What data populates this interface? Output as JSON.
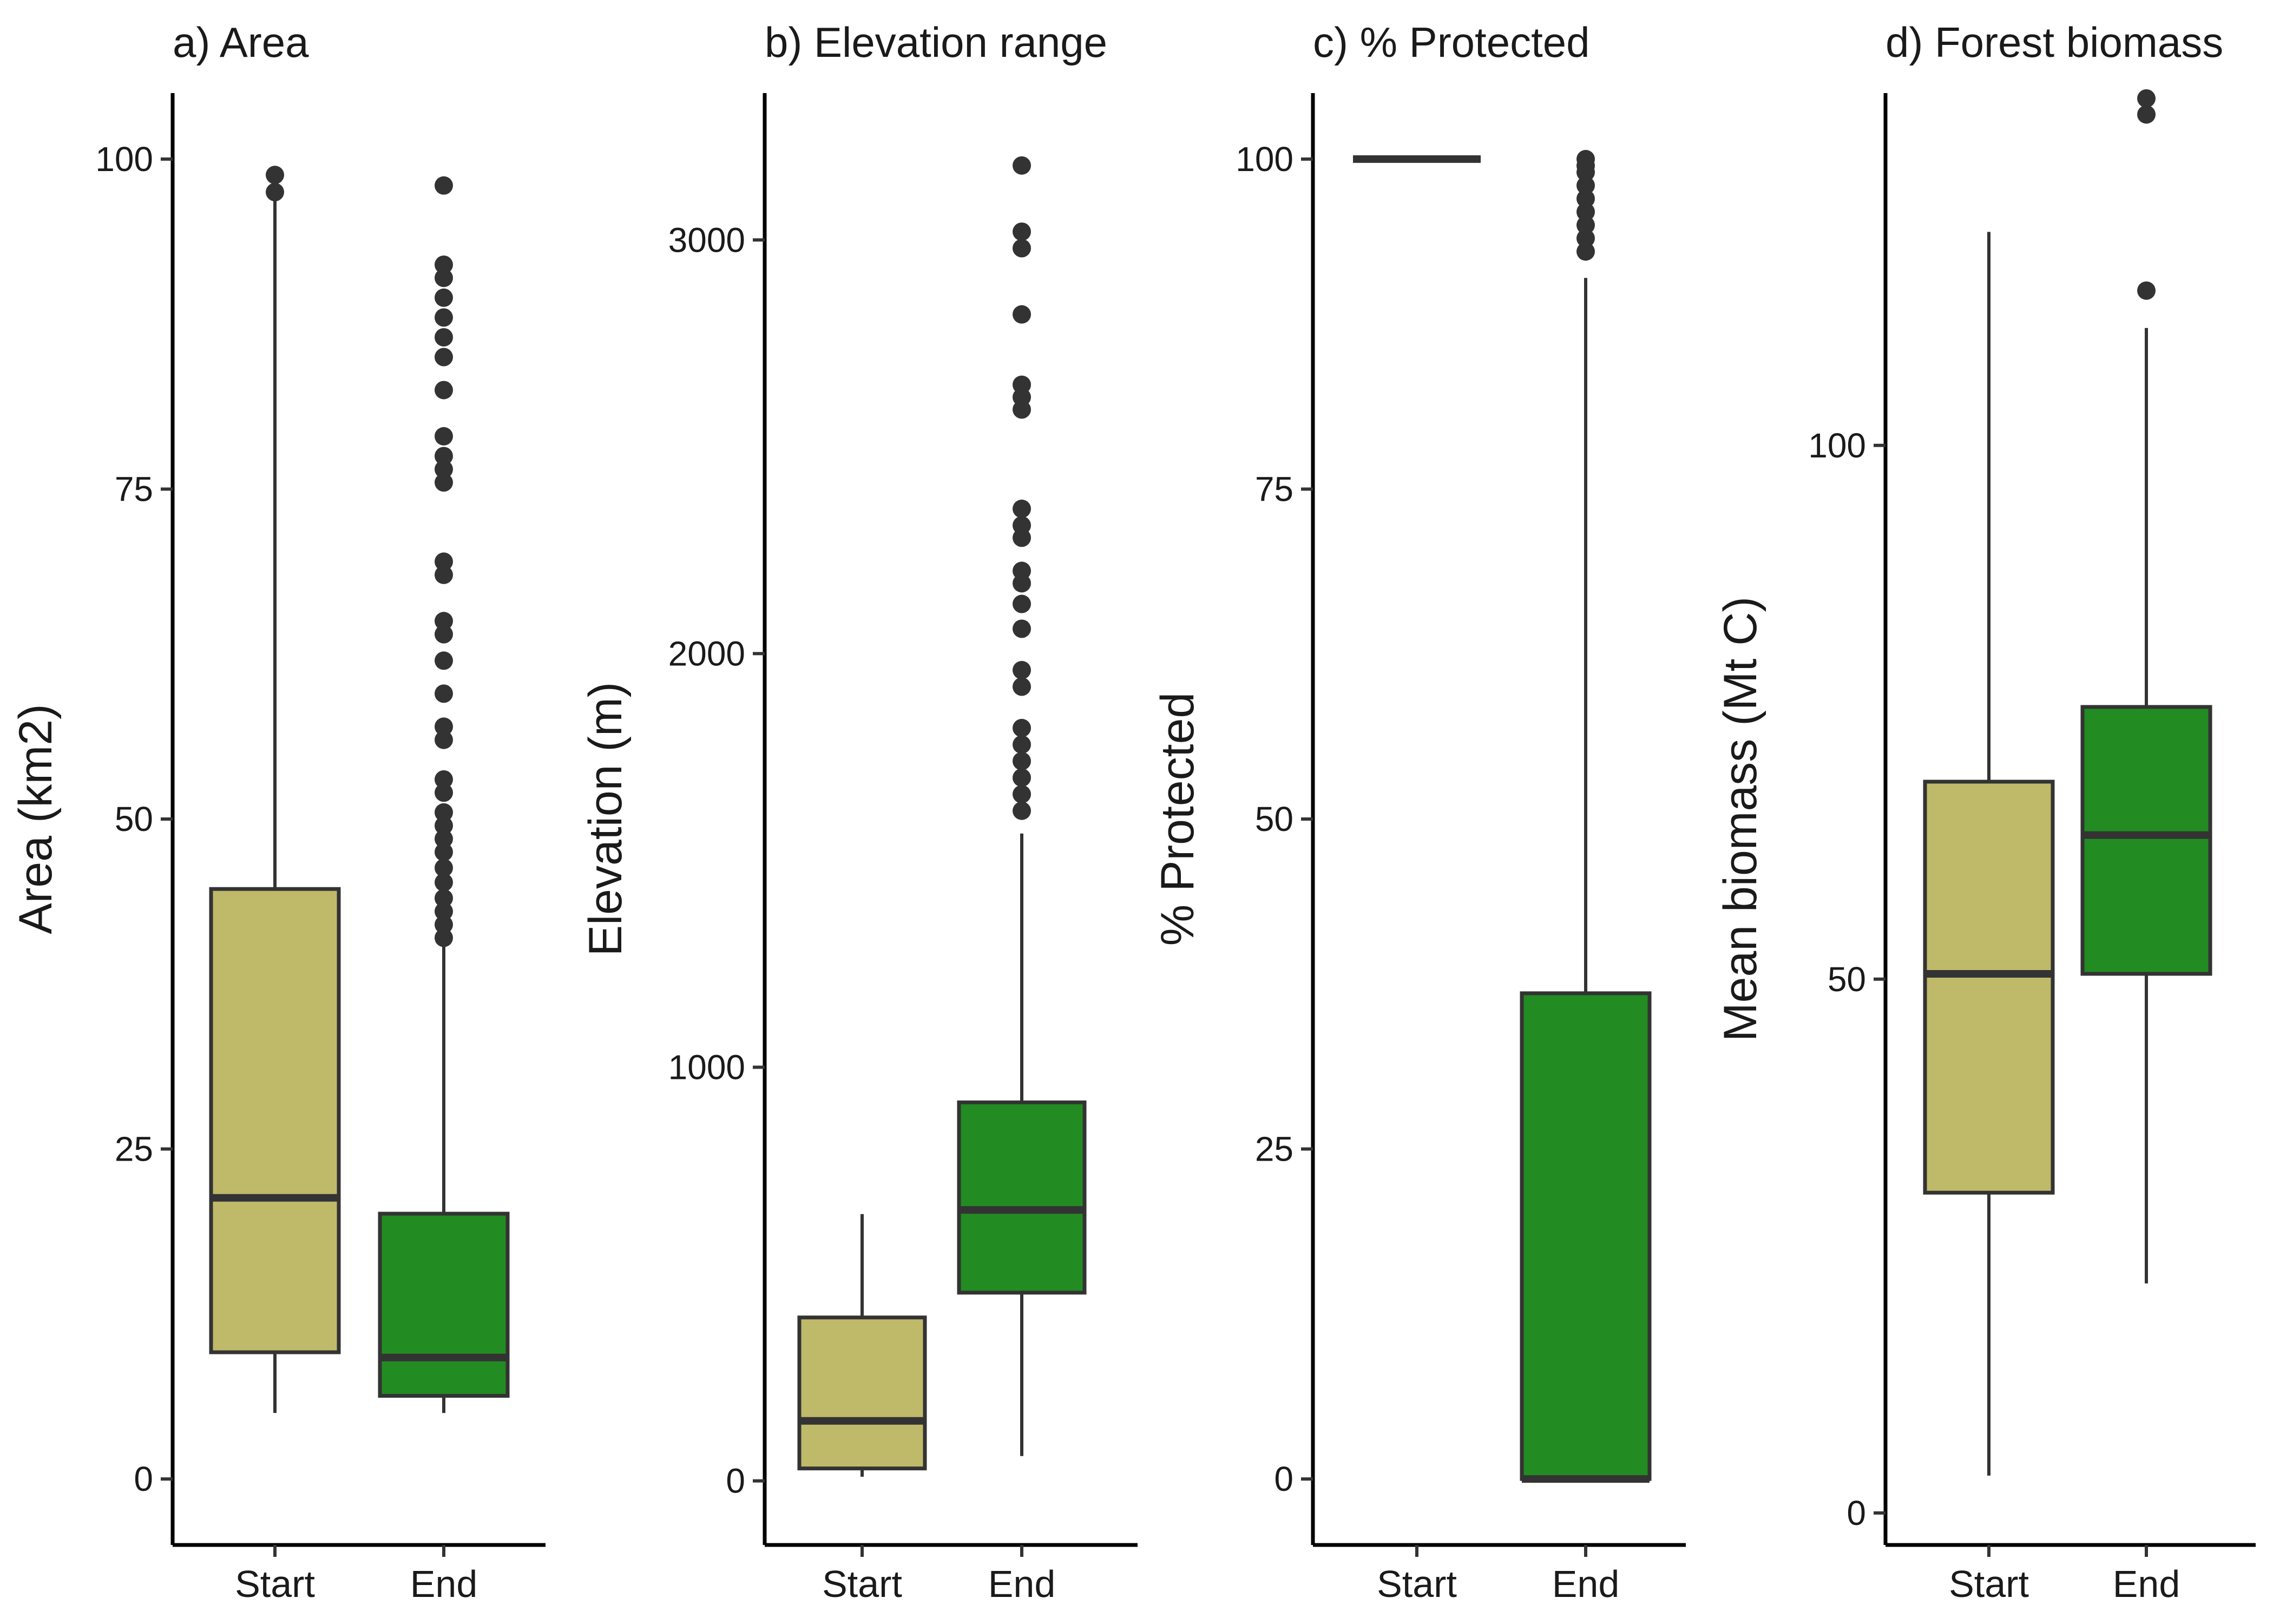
{
  "colors": {
    "start": "#bfb96a",
    "end": "#228b22",
    "line": "#333333"
  },
  "chart_data": [
    {
      "type": "box",
      "title": "a) Area",
      "xlabel": "",
      "ylabel": "Area (km2)",
      "ylim": [
        -5,
        105
      ],
      "y_ticks": [
        0,
        25,
        50,
        75,
        100
      ],
      "categories": [
        "Start",
        "End"
      ],
      "boxes": [
        {
          "category": "Start",
          "min": 5,
          "q1": 9.6,
          "median": 21.3,
          "q3": 44.7,
          "max": 97,
          "outliers": [
            97.5,
            98.8
          ]
        },
        {
          "category": "End",
          "min": 5,
          "q1": 6.3,
          "median": 9.2,
          "q3": 20.1,
          "max": 40.5,
          "outliers": [
            41,
            42,
            43,
            44,
            45.2,
            46.3,
            47.5,
            48.5,
            49.5,
            50.5,
            52,
            53,
            56,
            57,
            59.5,
            62,
            64,
            65,
            68.5,
            69.5,
            75.5,
            76.5,
            77.5,
            79,
            82.5,
            85,
            86.5,
            88,
            89.5,
            91,
            92,
            98
          ]
        }
      ]
    },
    {
      "type": "box",
      "title": "b) Elevation range",
      "xlabel": "",
      "ylabel": "Elevation (m)",
      "ylim": [
        -155,
        3355
      ],
      "y_ticks": [
        0,
        1000,
        2000,
        3000
      ],
      "categories": [
        "Start",
        "End"
      ],
      "boxes": [
        {
          "category": "Start",
          "min": 10,
          "q1": 30,
          "median": 145,
          "q3": 395,
          "max": 645,
          "outliers": []
        },
        {
          "category": "End",
          "min": 60,
          "q1": 455,
          "median": 655,
          "q3": 915,
          "max": 1565,
          "outliers": [
            1620,
            1660,
            1700,
            1740,
            1780,
            1820,
            1920,
            1960,
            2060,
            2120,
            2170,
            2200,
            2280,
            2310,
            2350,
            2590,
            2620,
            2650,
            2820,
            2980,
            3020,
            3180
          ]
        }
      ]
    },
    {
      "type": "box",
      "title": "c) % Protected",
      "xlabel": "",
      "ylabel": "% Protected",
      "ylim": [
        -5,
        105
      ],
      "y_ticks": [
        0,
        25,
        50,
        75,
        100
      ],
      "categories": [
        "Start",
        "End"
      ],
      "boxes": [
        {
          "category": "Start",
          "min": 100,
          "q1": 100,
          "median": 100,
          "q3": 100,
          "max": 100,
          "outliers": []
        },
        {
          "category": "End",
          "min": 0,
          "q1": 0,
          "median": 0,
          "q3": 36.8,
          "max": 91,
          "outliers": [
            93,
            94,
            95,
            96,
            97,
            98,
            99,
            99.5,
            100
          ]
        }
      ]
    },
    {
      "type": "box",
      "title": "d) Forest biomass",
      "xlabel": "",
      "ylabel": "Mean biomass (Mt C)",
      "ylim": [
        -3,
        133
      ],
      "y_ticks": [
        0,
        50,
        100
      ],
      "categories": [
        "Start",
        "End"
      ],
      "boxes": [
        {
          "category": "Start",
          "min": 3.5,
          "q1": 30,
          "median": 50.5,
          "q3": 68.5,
          "max": 120,
          "outliers": []
        },
        {
          "category": "End",
          "min": 21.5,
          "q1": 50.5,
          "median": 63.5,
          "q3": 75.5,
          "max": 111,
          "outliers": [
            114.5,
            131,
            132.5
          ]
        }
      ]
    }
  ]
}
